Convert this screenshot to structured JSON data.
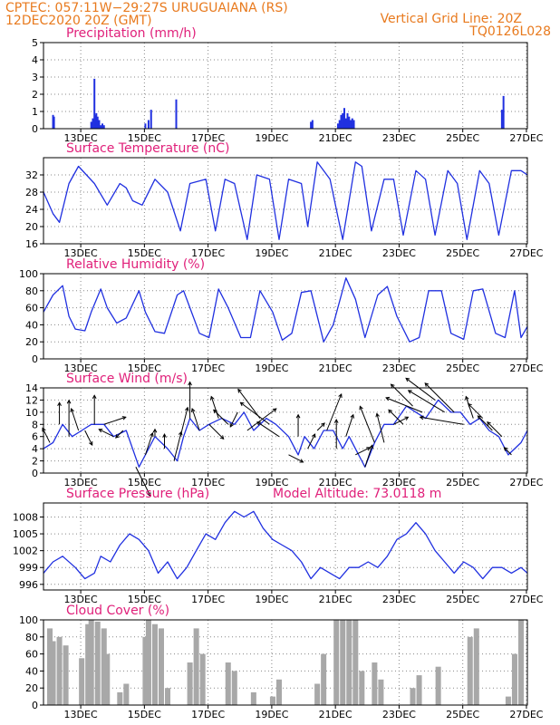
{
  "header": {
    "line1_left": "CPTEC:   057:11W−29:27S   URUGUAIANA (RS)",
    "line2_left": "12DEC2020 20Z (GMT)",
    "line1_right": "Vertical Grid Line: 20Z",
    "line2_right": "TQ0126L028"
  },
  "x_axis": {
    "range_days": [
      0,
      15.2
    ],
    "tick_labels": [
      "13DEC",
      "15DEC",
      "17DEC",
      "19DEC",
      "21DEC",
      "23DEC",
      "25DEC",
      "27DEC"
    ],
    "tick_positions_days": [
      1.17,
      3.17,
      5.17,
      7.17,
      9.17,
      11.17,
      13.17,
      15.17
    ]
  },
  "colors": {
    "line": "#2030e0",
    "bar": "#2030e0",
    "cloud": "#a8a8a8",
    "title": "#e0207a",
    "header": "#e87a1e"
  },
  "chart_data": [
    {
      "type": "bar",
      "title": "Precipitation (mm/h)",
      "ylim": [
        0,
        5
      ],
      "yticks": [
        0,
        1,
        2,
        3,
        4,
        5
      ],
      "x": [
        0.3,
        0.33,
        1.5,
        1.55,
        1.6,
        1.63,
        1.66,
        1.7,
        1.75,
        1.8,
        1.85,
        1.9,
        3.2,
        3.3,
        3.38,
        4.17,
        8.4,
        8.45,
        9.25,
        9.3,
        9.35,
        9.4,
        9.45,
        9.5,
        9.55,
        9.6,
        9.65,
        9.7,
        9.75,
        14.4,
        14.45
      ],
      "values": [
        0.8,
        0.7,
        0.4,
        0.6,
        2.9,
        0.8,
        0.9,
        0.7,
        0.5,
        0.2,
        0.3,
        0.2,
        0.3,
        0.5,
        1.1,
        1.7,
        0.4,
        0.5,
        0.3,
        0.5,
        0.8,
        0.9,
        1.2,
        0.6,
        0.9,
        0.7,
        0.5,
        0.6,
        0.5,
        1.1,
        1.9
      ]
    },
    {
      "type": "line",
      "title": "Surface Temperature (nC)",
      "ylim": [
        16,
        36
      ],
      "yticks": [
        16,
        20,
        24,
        28,
        32
      ],
      "x": [
        0,
        0.3,
        0.5,
        0.8,
        1.1,
        1.6,
        2.0,
        2.4,
        2.6,
        2.8,
        3.1,
        3.5,
        3.9,
        4.3,
        4.6,
        5.1,
        5.4,
        5.7,
        6.0,
        6.4,
        6.7,
        7.1,
        7.4,
        7.7,
        8.1,
        8.3,
        8.6,
        9.0,
        9.4,
        9.8,
        10.0,
        10.3,
        10.7,
        11.0,
        11.3,
        11.7,
        12.0,
        12.3,
        12.7,
        13.0,
        13.3,
        13.7,
        14.0,
        14.3,
        14.7,
        15.0,
        15.2
      ],
      "values": [
        28,
        23,
        21,
        30,
        34,
        30,
        25,
        30,
        29,
        26,
        25,
        31,
        28,
        19,
        30,
        31,
        19,
        31,
        30,
        17,
        32,
        31,
        17,
        31,
        30,
        20,
        35,
        31,
        17,
        35,
        34,
        19,
        31,
        31,
        18,
        33,
        31,
        18,
        33,
        30,
        17,
        33,
        30,
        18,
        33,
        33,
        32
      ]
    },
    {
      "type": "line",
      "title": "Relative Humidity (%)",
      "ylim": [
        0,
        100
      ],
      "yticks": [
        0,
        20,
        40,
        60,
        80,
        100
      ],
      "x": [
        0,
        0.3,
        0.6,
        0.8,
        1.0,
        1.3,
        1.5,
        1.8,
        2.0,
        2.3,
        2.6,
        3.0,
        3.2,
        3.5,
        3.8,
        4.2,
        4.4,
        4.6,
        4.9,
        5.2,
        5.5,
        5.8,
        6.2,
        6.5,
        6.8,
        7.2,
        7.5,
        7.8,
        8.1,
        8.4,
        8.8,
        9.1,
        9.5,
        9.8,
        10.1,
        10.5,
        10.8,
        11.1,
        11.5,
        11.8,
        12.1,
        12.5,
        12.8,
        13.2,
        13.5,
        13.8,
        14.2,
        14.5,
        14.8,
        15.0,
        15.2
      ],
      "values": [
        55,
        75,
        86,
        50,
        35,
        33,
        55,
        82,
        60,
        42,
        48,
        80,
        55,
        32,
        30,
        75,
        80,
        60,
        30,
        25,
        82,
        60,
        25,
        25,
        80,
        55,
        22,
        30,
        78,
        80,
        20,
        40,
        95,
        70,
        25,
        75,
        85,
        50,
        20,
        25,
        80,
        80,
        30,
        23,
        80,
        82,
        30,
        25,
        80,
        25,
        38
      ]
    },
    {
      "type": "line",
      "title": "Surface Wind (m/s)",
      "ylim": [
        0,
        14
      ],
      "yticks": [
        0,
        2,
        4,
        6,
        8,
        10,
        12,
        14
      ],
      "x": [
        0,
        0.3,
        0.6,
        0.9,
        1.2,
        1.5,
        1.9,
        2.2,
        2.6,
        3.0,
        3.2,
        3.5,
        3.9,
        4.2,
        4.4,
        4.6,
        4.9,
        5.2,
        5.6,
        6.0,
        6.3,
        6.6,
        7.0,
        7.3,
        7.7,
        8.0,
        8.2,
        8.5,
        8.8,
        9.1,
        9.4,
        9.6,
        9.9,
        10.1,
        10.4,
        10.7,
        11.0,
        11.4,
        11.7,
        12.0,
        12.4,
        12.8,
        13.1,
        13.4,
        13.7,
        14.0,
        14.3,
        14.6,
        15.0,
        15.2
      ],
      "values": [
        4,
        5,
        8,
        6,
        7,
        8,
        8,
        6,
        7,
        1,
        3,
        6,
        4,
        2,
        6,
        9,
        7,
        8,
        9,
        8,
        10,
        7,
        9,
        8,
        6,
        3,
        6,
        4,
        7,
        7,
        4,
        6,
        3,
        1,
        5,
        8,
        8,
        11,
        10,
        9,
        12,
        10,
        10,
        8,
        9,
        7,
        6,
        3,
        5,
        7
      ]
    },
    {
      "type": "line",
      "title": "Surface Pressure (hPa)",
      "annotation": "Model Altitude: 73.0118 m",
      "ylim": [
        995,
        1010.5
      ],
      "yticks": [
        996,
        999,
        1002,
        1005,
        1008
      ],
      "x": [
        0,
        0.3,
        0.6,
        1.0,
        1.3,
        1.6,
        1.8,
        2.1,
        2.4,
        2.7,
        3.0,
        3.3,
        3.6,
        3.9,
        4.2,
        4.5,
        4.8,
        5.1,
        5.4,
        5.7,
        6.0,
        6.3,
        6.6,
        6.9,
        7.2,
        7.5,
        7.8,
        8.1,
        8.4,
        8.7,
        9.0,
        9.3,
        9.6,
        9.9,
        10.2,
        10.5,
        10.8,
        11.1,
        11.4,
        11.7,
        12.0,
        12.3,
        12.6,
        12.9,
        13.2,
        13.5,
        13.8,
        14.1,
        14.4,
        14.7,
        15.0,
        15.2
      ],
      "values": [
        998,
        1000,
        1001,
        999,
        997,
        998,
        1001,
        1000,
        1003,
        1005,
        1004,
        1002,
        998,
        1000,
        997,
        999,
        1002,
        1005,
        1004,
        1007,
        1009,
        1008,
        1009,
        1006,
        1004,
        1003,
        1002,
        1000,
        997,
        999,
        998,
        997,
        999,
        999,
        1000,
        999,
        1001,
        1004,
        1005,
        1007,
        1005,
        1002,
        1000,
        998,
        1000,
        999,
        997,
        999,
        999,
        998,
        999,
        998
      ]
    },
    {
      "type": "area",
      "title": "Cloud Cover (%)",
      "ylim": [
        0,
        100
      ],
      "yticks": [
        0,
        20,
        40,
        60,
        80,
        100
      ],
      "x": [
        0,
        0.2,
        0.3,
        0.5,
        0.7,
        0.9,
        1.0,
        1.2,
        1.4,
        1.5,
        1.7,
        1.9,
        2.0,
        2.2,
        2.4,
        2.6,
        2.8,
        3.0,
        3.2,
        3.3,
        3.5,
        3.7,
        3.9,
        4.0,
        4.2,
        4.4,
        4.6,
        4.8,
        5.0,
        5.2,
        5.4,
        5.6,
        5.8,
        6.0,
        6.2,
        6.4,
        6.6,
        6.8,
        7.0,
        7.2,
        7.4,
        7.6,
        7.8,
        8.0,
        8.2,
        8.4,
        8.6,
        8.8,
        9.0,
        9.2,
        9.4,
        9.6,
        9.8,
        10.0,
        10.2,
        10.4,
        10.6,
        10.8,
        11.0,
        11.2,
        11.4,
        11.6,
        11.8,
        12.0,
        12.2,
        12.4,
        12.6,
        12.8,
        13.0,
        13.2,
        13.4,
        13.6,
        13.8,
        14.0,
        14.2,
        14.4,
        14.6,
        14.8,
        15.0,
        15.2
      ],
      "values": [
        0,
        90,
        75,
        80,
        70,
        0,
        0,
        55,
        95,
        100,
        98,
        90,
        60,
        0,
        15,
        25,
        0,
        0,
        80,
        100,
        95,
        90,
        20,
        0,
        0,
        0,
        50,
        90,
        60,
        0,
        0,
        0,
        50,
        40,
        0,
        0,
        15,
        0,
        0,
        10,
        30,
        0,
        0,
        0,
        0,
        0,
        25,
        60,
        0,
        100,
        100,
        100,
        100,
        40,
        0,
        50,
        30,
        0,
        0,
        0,
        0,
        20,
        35,
        0,
        0,
        45,
        0,
        0,
        0,
        0,
        80,
        90,
        0,
        0,
        0,
        0,
        10,
        60,
        100,
        0
      ]
    }
  ],
  "wind_vectors": {
    "x": [
      0.2,
      0.5,
      0.8,
      1.1,
      1.3,
      1.6,
      1.9,
      2.2,
      2.5,
      2.9,
      3.2,
      3.5,
      3.8,
      4.1,
      4.3,
      4.6,
      4.9,
      5.2,
      5.5,
      5.8,
      6.1,
      6.4,
      6.8,
      7.1,
      7.4,
      7.7,
      8.0,
      8.3,
      8.6,
      8.9,
      9.2,
      9.5,
      9.8,
      10.1,
      10.4,
      10.7,
      11.0,
      11.3,
      11.6,
      11.9,
      12.3,
      12.6,
      12.9,
      13.2,
      13.5,
      13.8,
      14.1,
      14.4,
      14.7
    ],
    "u": [
      -1,
      0,
      0,
      -1,
      1,
      0,
      3,
      -2,
      -1,
      2,
      1,
      0,
      0,
      1,
      1,
      0,
      -1,
      2,
      -1,
      -2,
      -1,
      4,
      -3,
      -4,
      -3,
      2,
      0,
      1,
      1,
      2,
      0,
      1,
      2,
      1,
      -2,
      -1,
      2,
      -2,
      -3,
      -5,
      -4,
      -5,
      -4,
      -6,
      -1,
      -2,
      -2,
      -2,
      -1
    ],
    "v": [
      2,
      3,
      5,
      3,
      -2,
      4,
      1,
      1,
      -1,
      -4,
      3,
      1,
      2,
      4,
      4,
      5,
      3,
      -2,
      3,
      2,
      -2,
      3,
      4,
      3,
      2,
      -1,
      3,
      2,
      1,
      5,
      4,
      3,
      1,
      3,
      5,
      4,
      1,
      2,
      3,
      2,
      3,
      3,
      4,
      1,
      3,
      2,
      2,
      2,
      1
    ]
  }
}
